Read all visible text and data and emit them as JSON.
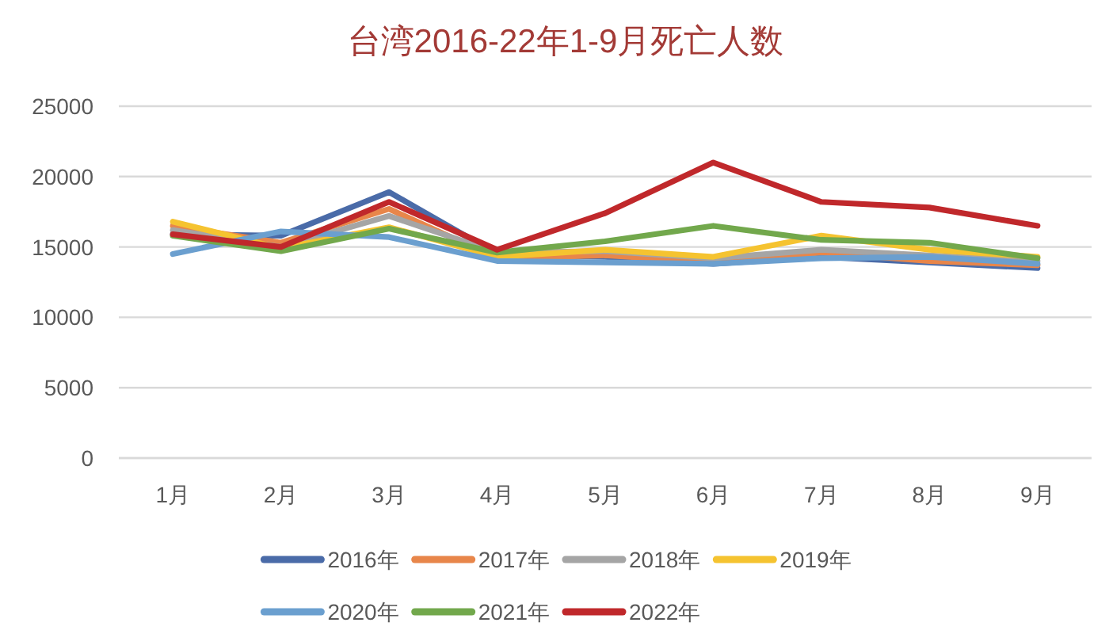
{
  "chart_data": {
    "type": "line",
    "title": "台湾2016-22年1-9月死亡人数",
    "categories": [
      "1月",
      "2月",
      "3月",
      "4月",
      "5月",
      "6月",
      "7月",
      "8月",
      "9月"
    ],
    "series": [
      {
        "name": "2016年",
        "color": "#4a6ba8",
        "values": [
          15900,
          15800,
          18900,
          14500,
          14300,
          13800,
          14300,
          13900,
          13500
        ]
      },
      {
        "name": "2017年",
        "color": "#e8864a",
        "values": [
          16500,
          15300,
          17700,
          14200,
          14400,
          13900,
          14600,
          14000,
          13700
        ]
      },
      {
        "name": "2018年",
        "color": "#a5a5a5",
        "values": [
          16200,
          15000,
          17200,
          14600,
          14700,
          14200,
          14800,
          14400,
          14000
        ]
      },
      {
        "name": "2019年",
        "color": "#f5c330",
        "values": [
          16800,
          14900,
          16400,
          14300,
          14800,
          14300,
          15800,
          14800,
          14300
        ]
      },
      {
        "name": "2020年",
        "color": "#6b9fcf",
        "values": [
          14500,
          16100,
          15700,
          14000,
          13900,
          13800,
          14200,
          14300,
          13800
        ]
      },
      {
        "name": "2021年",
        "color": "#72a84c",
        "values": [
          15800,
          14700,
          16300,
          14600,
          15400,
          16500,
          15500,
          15300,
          14200
        ]
      },
      {
        "name": "2022年",
        "color": "#c0282b",
        "values": [
          15900,
          15000,
          18200,
          14800,
          17400,
          21000,
          18200,
          17800,
          16500
        ]
      }
    ],
    "ylim": [
      0,
      25000
    ],
    "yticks": [
      0,
      5000,
      10000,
      15000,
      20000,
      25000
    ],
    "grid": "y",
    "legend": "bottom",
    "marker": "none",
    "line_style": "solid"
  }
}
